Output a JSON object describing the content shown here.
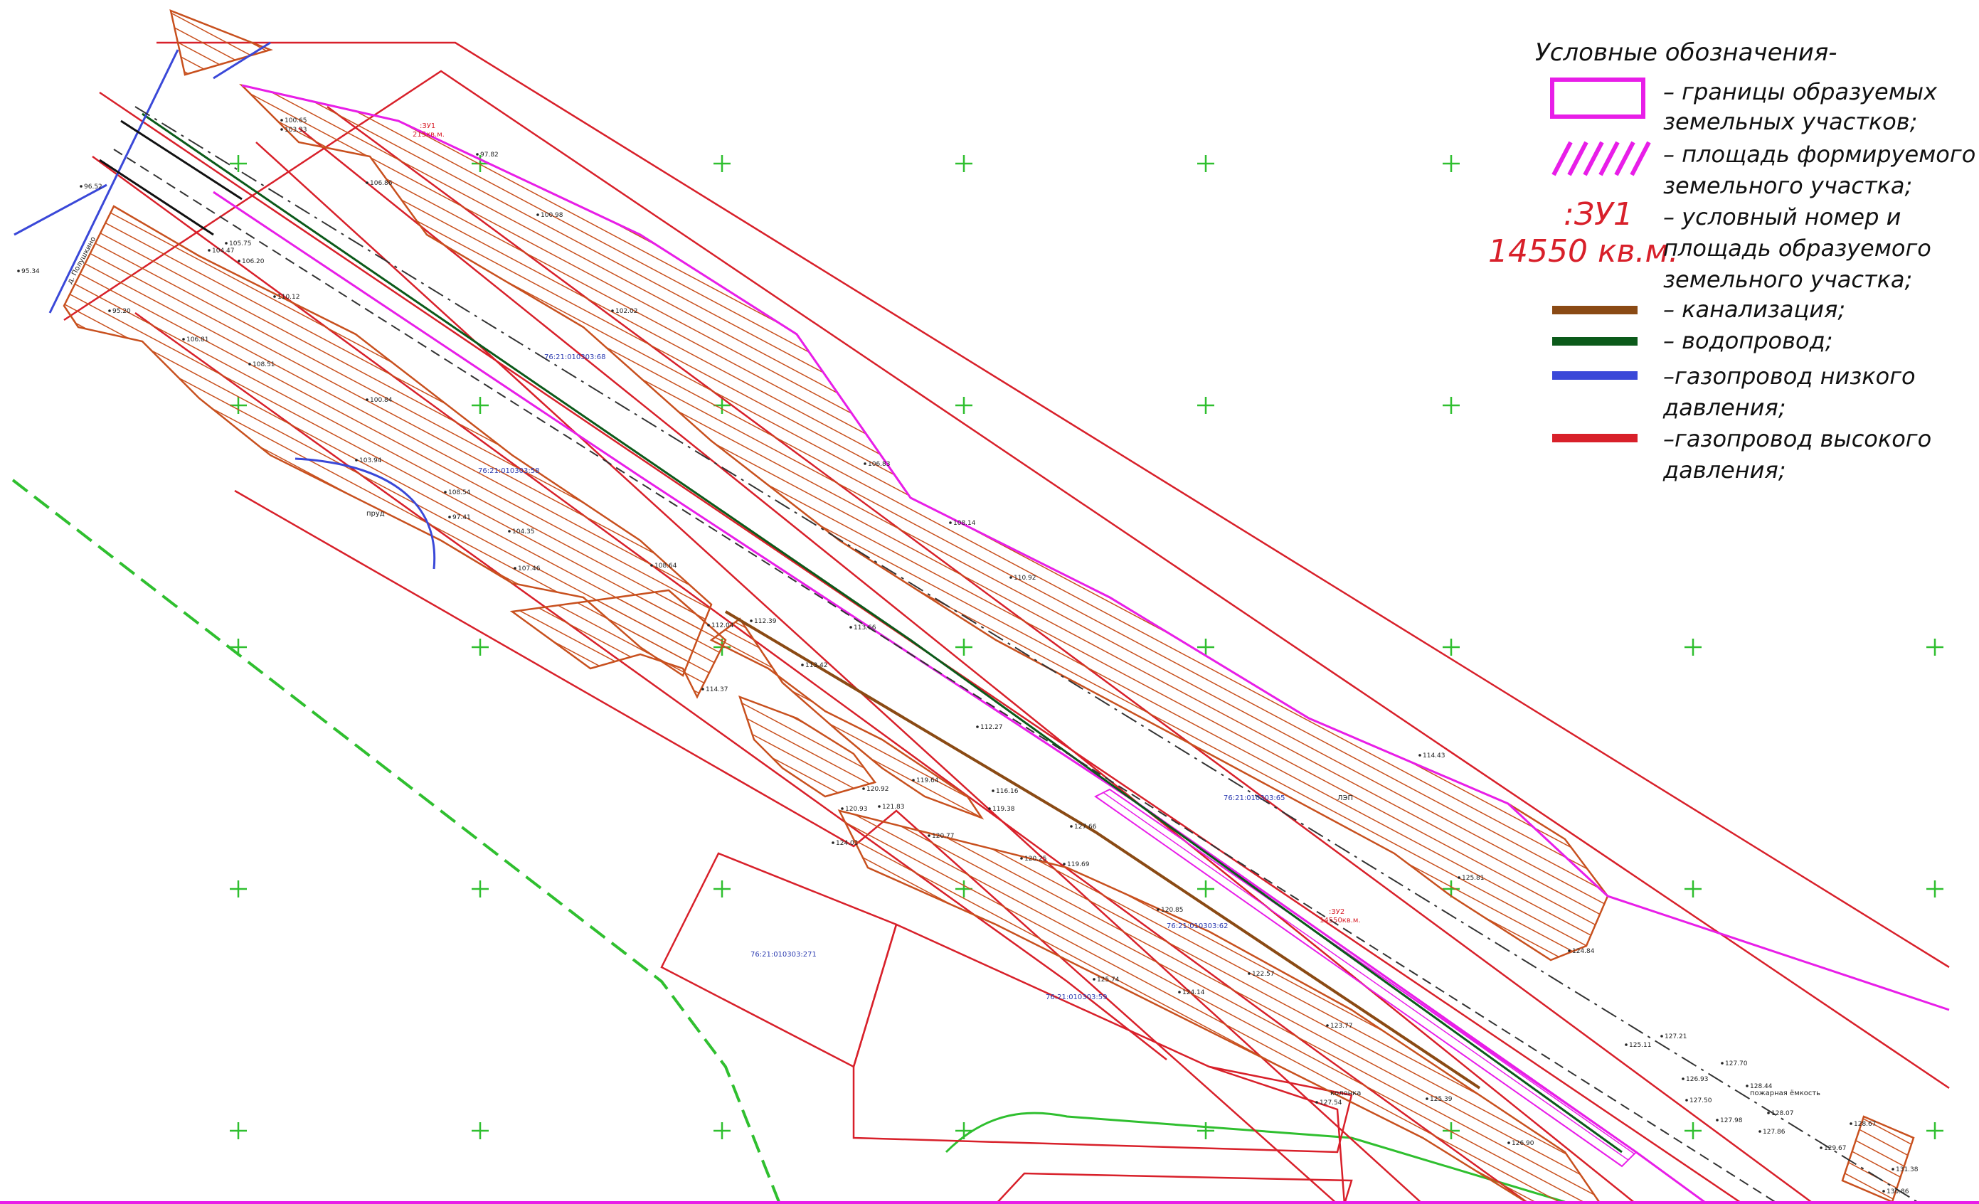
{
  "legend": {
    "title": "Условные обозначения-",
    "items": [
      {
        "key": "boundary",
        "lines": [
          "– границы образуемых",
          "земельных участков;"
        ],
        "color": "#e81ee8"
      },
      {
        "key": "hatch_area",
        "lines": [
          "– площадь формируемого",
          "земельного участка;"
        ],
        "color": "#e81ee8"
      },
      {
        "key": "plot_number",
        "lines": [
          "– условный номер и",
          "площадь образуемого",
          "земельного участка;"
        ],
        "color": "#d8202a"
      },
      {
        "key": "sewer",
        "lines": [
          "– канализация;"
        ],
        "color": "#8a4a14"
      },
      {
        "key": "water",
        "lines": [
          "– водопровод;"
        ],
        "color": "#0b5a1a"
      },
      {
        "key": "gas_low",
        "lines": [
          "–газопровод низкого",
          "давления;"
        ],
        "color": "#3a48d8"
      },
      {
        "key": "gas_high",
        "lines": [
          "–газопровод высокого",
          "давления;"
        ],
        "color": "#d8202a"
      }
    ],
    "sample_number": ":ЗУ1",
    "sample_area": "14550 кв.м."
  },
  "parcels": [
    {
      "id": "p1",
      "label": "76:21:010303:271"
    },
    {
      "id": "p2",
      "label": "76:21:010303:59"
    },
    {
      "id": "p3",
      "label": "76:21:010303:62"
    },
    {
      "id": "p4",
      "label": "76:21:010303:68"
    },
    {
      "id": "p5",
      "label": "76:21:010303:58"
    },
    {
      "id": "p6",
      "label": "76:21:010303:65"
    }
  ],
  "plot_labels": [
    {
      "id": "z1",
      "number": ":ЗУ1",
      "area": "215кв.м."
    },
    {
      "id": "z2",
      "number": ":ЗУ2",
      "area": "14550кв.м."
    }
  ],
  "elevations": [
    "95.34",
    "96.52",
    "95.20",
    "104.47",
    "105.75",
    "106.20",
    "110.12",
    "100.65",
    "103.33",
    "106.86",
    "97.82",
    "100.98",
    "102.02",
    "106.83",
    "108.14",
    "110.92",
    "106.81",
    "108.51",
    "100.84",
    "103.94",
    "108.54",
    "104.35",
    "97.41",
    "107.46",
    "108.64",
    "112.04",
    "112.39",
    "113.66",
    "113.42",
    "114.37",
    "116.16",
    "119.38",
    "119.64",
    "120.92",
    "120.93",
    "121.83",
    "120.77",
    "124.01",
    "120.25",
    "119.69",
    "120.85",
    "122.57",
    "123.77",
    "125.74",
    "124.14",
    "125.39",
    "126.90",
    "127.54",
    "124.84",
    "125.11",
    "126.93",
    "127.50",
    "127.98",
    "128.44",
    "128.07",
    "127.86",
    "128.67",
    "129.67",
    "131.38",
    "130.86",
    "127.21",
    "127.70",
    "112.27",
    "114.43",
    "125.81",
    "127.66"
  ],
  "map_texts": [
    "пруд",
    "ЛЭП",
    "пожарная ёмкость",
    "колонка",
    "д. Полушкино"
  ]
}
